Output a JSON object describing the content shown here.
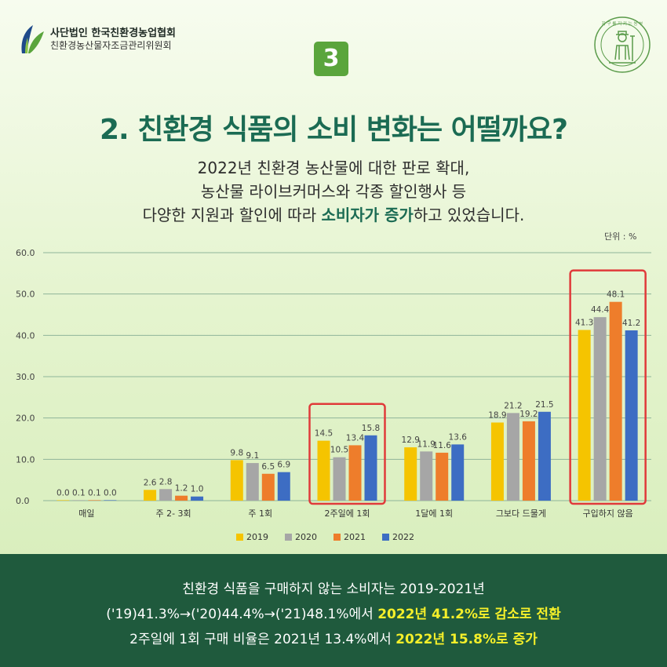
{
  "header": {
    "org_name_1": "사단법인 한국친환경농업협회",
    "org_name_2": "친환경농산물자조금관리위원회",
    "badge_number": "3",
    "stamp_text": "지 구 를 지 키 는 농 부"
  },
  "title": "2. 친환경 식품의 소비 변화는 어떨까요?",
  "subtitle": {
    "line1": "2022년 친환경 농산물에 대한 판로 확대,",
    "line2": "농산물 라이브커머스와 각종 할인행사 등",
    "line3_pre": "다양한 지원과 할인에 따라 ",
    "line3_bold": "소비자가 증가",
    "line3_post": "하고 있었습니다."
  },
  "unit_label": "단위 : %",
  "chart_data": {
    "type": "bar",
    "categories": [
      "매일",
      "주 2- 3회",
      "주 1회",
      "2주일에 1회",
      "1달에 1회",
      "그보다 드물게",
      "구입하지 않음"
    ],
    "series": [
      {
        "name": "2019",
        "color": "#f5c400",
        "values": [
          0.0,
          2.6,
          9.8,
          14.5,
          12.9,
          18.9,
          41.3
        ],
        "labels": [
          "0.0",
          "2.6",
          "9.8",
          "14.5",
          "12.9",
          "18.9",
          "41.3"
        ]
      },
      {
        "name": "2020",
        "color": "#a6a6a6",
        "values": [
          0.1,
          2.8,
          9.1,
          10.5,
          11.9,
          21.2,
          44.4
        ],
        "labels": [
          "0.1",
          "2.8",
          "9.1",
          "10.5",
          "11.9",
          "21.2",
          "44.4"
        ]
      },
      {
        "name": "2021",
        "color": "#ee7d2b",
        "values": [
          0.1,
          1.2,
          6.5,
          13.4,
          11.6,
          19.2,
          48.1
        ],
        "labels": [
          "0.1",
          "1.2",
          "6.5",
          "13.4",
          "11.6",
          "19.2",
          "48.1"
        ]
      },
      {
        "name": "2022",
        "color": "#3d6dc3",
        "values": [
          0.0,
          1.0,
          6.9,
          15.8,
          13.6,
          21.5,
          41.2
        ],
        "labels": [
          "0.0",
          "1.0",
          "6.9",
          "15.8",
          "13.6",
          "21.5",
          "41.2"
        ]
      }
    ],
    "ylim": [
      0,
      60
    ],
    "yticks": [
      "0.0",
      "10.0",
      "20.0",
      "30.0",
      "40.0",
      "50.0",
      "60.0"
    ],
    "highlighted_categories": [
      "2주일에 1회",
      "구입하지 않음"
    ],
    "highlight_color": "#e03a3a",
    "grid": true,
    "legend_position": "bottom"
  },
  "summary": {
    "line1": "친환경 식품을 구매하지 않는 소비자는 2019-2021년",
    "line2_pre": "('19)41.3%→('20)44.4%→('21)48.1%에서 ",
    "line2_bold": "2022년 41.2%로 감소로 전환",
    "line3_pre": "2주일에 1회 구매 비율은 2021년 13.4%에서 ",
    "line3_bold": "2022년 15.8%로 증가"
  },
  "colors": {
    "title": "#1b6b53",
    "bottom_bg": "#1f5a3d",
    "highlight_text": "#f4ef2a",
    "badge": "#5aa53c"
  }
}
